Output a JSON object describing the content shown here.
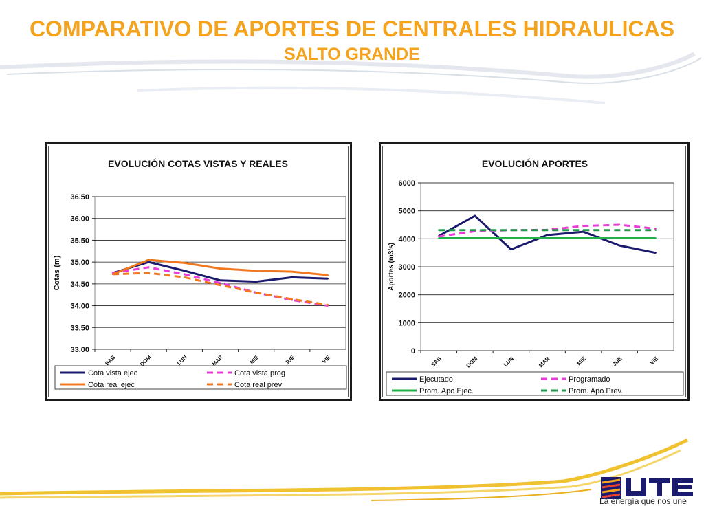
{
  "slide": {
    "title": "COMPARATIVO DE APORTES DE CENTRALES HIDRAULICAS",
    "subtitle": "SALTO GRANDE"
  },
  "colors": {
    "title": "#f4a31f",
    "navy": "#1b1b6e",
    "orange": "#f07820",
    "magenta": "#e83cd8",
    "green": "#22b04a",
    "darkgreen": "#1e9a4a"
  },
  "brand": {
    "logo_text": "UTE",
    "tagline": "La energía que nos une"
  },
  "chart_data": [
    {
      "type": "line",
      "title": "EVOLUCIÓN  COTAS VISTAS Y REALES",
      "ylabel": "Cotas (m)",
      "xlabel": "",
      "categories": [
        "SAB",
        "DOM",
        "LUN",
        "MAR",
        "MIE",
        "JUE",
        "VIE"
      ],
      "ylim": [
        33.0,
        36.5
      ],
      "yticks": [
        "33.00",
        "33.50",
        "34.00",
        "34.50",
        "35.00",
        "35.50",
        "36.00",
        "36.50"
      ],
      "grid": true,
      "legend_position": "bottom",
      "series": [
        {
          "name": "Cota vista ejec",
          "color": "#1b1b6e",
          "style": "solid",
          "values": [
            34.75,
            35.0,
            34.8,
            34.58,
            34.55,
            34.65,
            34.62
          ]
        },
        {
          "name": "Cota vista prog",
          "color": "#e83cd8",
          "style": "dashed",
          "values": [
            34.75,
            34.88,
            34.72,
            34.52,
            34.3,
            34.13,
            34.0
          ]
        },
        {
          "name": "Cota real ejec",
          "color": "#f07820",
          "style": "solid",
          "values": [
            34.72,
            35.05,
            34.98,
            34.85,
            34.8,
            34.78,
            34.7
          ]
        },
        {
          "name": "Cota real prev",
          "color": "#f07820",
          "style": "dashed",
          "values": [
            34.72,
            34.75,
            34.65,
            34.47,
            34.3,
            34.15,
            34.02
          ]
        }
      ]
    },
    {
      "type": "line",
      "title": "EVOLUCIÓN  APORTES",
      "ylabel": "Aportes (m3/s)",
      "xlabel": "",
      "categories": [
        "SAB",
        "DOM",
        "LUN",
        "MAR",
        "MIE",
        "JUE",
        "VIE"
      ],
      "ylim": [
        0,
        6000
      ],
      "yticks": [
        "0",
        "1000",
        "2000",
        "3000",
        "4000",
        "5000",
        "6000"
      ],
      "grid": true,
      "legend_position": "bottom",
      "series": [
        {
          "name": "Ejecutado",
          "color": "#1b1b6e",
          "style": "solid",
          "values": [
            4100,
            4820,
            3620,
            4130,
            4250,
            3760,
            3500
          ]
        },
        {
          "name": "Programado",
          "color": "#e83cd8",
          "style": "dashed",
          "values": [
            4080,
            4270,
            4310,
            4320,
            4460,
            4500,
            4360
          ]
        },
        {
          "name": "Prom. Apo Ejec.",
          "color": "#22b04a",
          "style": "solid",
          "values": [
            4020,
            4020,
            4020,
            4020,
            4020,
            4020,
            4020
          ]
        },
        {
          "name": "Prom. Apo.Prev.",
          "color": "#1e9a4a",
          "style": "dashed",
          "values": [
            4310,
            4310,
            4310,
            4310,
            4310,
            4310,
            4310
          ]
        }
      ]
    }
  ]
}
